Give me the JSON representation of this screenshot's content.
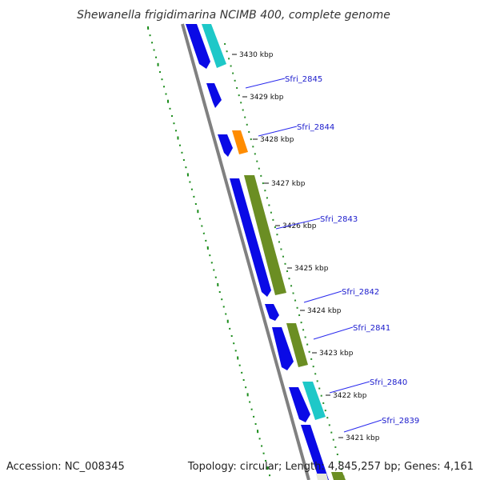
{
  "title": "Shewanella frigidimarina NCIMB 400, complete genome",
  "footer": {
    "accession": "Accession: NC_008345",
    "summary": "Topology: circular; Length: 4,845,257 bp; Genes: 4,161"
  },
  "colors": {
    "forward_cds": "#0a0ae6",
    "rrna": "#1ec8c8",
    "orange_feature": "#ff8c00",
    "olive_feature": "#6b8e23",
    "backbone": "#808080",
    "gc_ticks": "#1a8c1a",
    "tick_marks": "#2a8f2a",
    "label_line": "#2a2aee",
    "label_text": "#1a1acc"
  },
  "kbp_ticks": [
    "3430 kbp",
    "3429 kbp",
    "3428 kbp",
    "3427 kbp",
    "3426 kbp",
    "3425 kbp",
    "3424 kbp",
    "3423 kbp",
    "3422 kbp",
    "3421 kbp"
  ],
  "gene_labels": [
    "Sfri_2845",
    "Sfri_2844",
    "Sfri_2843",
    "Sfri_2842",
    "Sfri_2841",
    "Sfri_2840",
    "Sfri_2839"
  ]
}
